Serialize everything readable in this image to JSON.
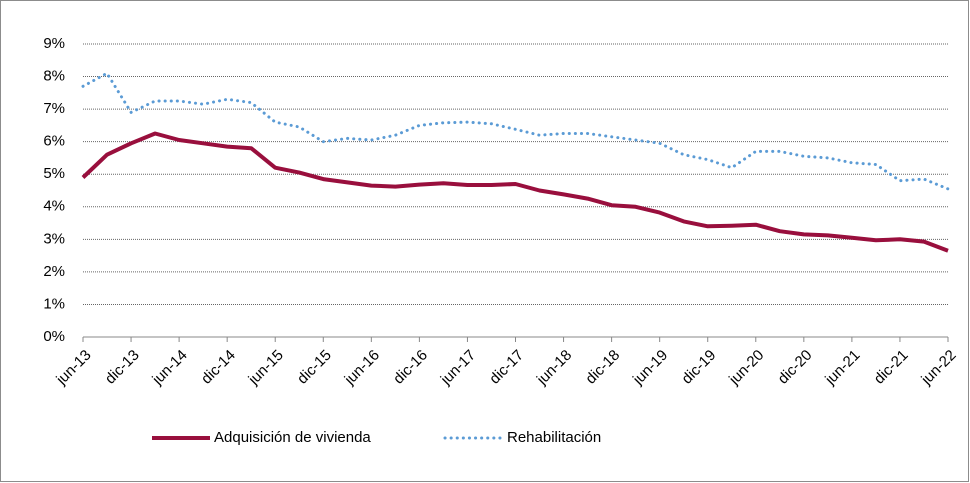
{
  "chart_data": {
    "type": "line",
    "categories": [
      "jun-13",
      null,
      "dic-13",
      null,
      "jun-14",
      null,
      "dic-14",
      null,
      "jun-15",
      null,
      "dic-15",
      null,
      "jun-16",
      null,
      "dic-16",
      null,
      "jun-17",
      null,
      "dic-17",
      null,
      "jun-18",
      null,
      "dic-18",
      null,
      "jun-19",
      null,
      "dic-19",
      null,
      "jun-20",
      null,
      "dic-20",
      null,
      "jun-21",
      null,
      "dic-21",
      null,
      "jun-22"
    ],
    "series": [
      {
        "name": "Adquisición de vivienda",
        "color": "#990f3d",
        "style": "solid",
        "values": [
          4.9,
          5.6,
          5.95,
          6.25,
          6.05,
          5.95,
          5.85,
          5.8,
          5.2,
          5.05,
          4.85,
          4.75,
          4.65,
          4.62,
          4.68,
          4.72,
          4.67,
          4.67,
          4.7,
          4.5,
          4.38,
          4.25,
          4.05,
          4.0,
          3.82,
          3.55,
          3.4,
          3.42,
          3.45,
          3.25,
          3.15,
          3.12,
          3.05,
          2.97,
          3.0,
          2.93,
          2.65
        ]
      },
      {
        "name": "Rehabilitación",
        "color": "#5b9bd5",
        "style": "dotted",
        "values": [
          7.7,
          8.1,
          6.9,
          7.25,
          7.25,
          7.15,
          7.3,
          7.2,
          6.6,
          6.45,
          6.0,
          6.1,
          6.05,
          6.2,
          6.5,
          6.58,
          6.6,
          6.55,
          6.38,
          6.2,
          6.25,
          6.25,
          6.15,
          6.05,
          5.95,
          5.6,
          5.45,
          5.2,
          5.7,
          5.7,
          5.55,
          5.5,
          5.35,
          5.3,
          4.8,
          4.85,
          4.55
        ]
      }
    ],
    "ylim": [
      0,
      9
    ],
    "yticks": [
      {
        "value": 0,
        "label": "0%"
      },
      {
        "value": 1,
        "label": "1%"
      },
      {
        "value": 2,
        "label": "2%"
      },
      {
        "value": 3,
        "label": "3%"
      },
      {
        "value": 4,
        "label": "4%"
      },
      {
        "value": 5,
        "label": "5%"
      },
      {
        "value": 6,
        "label": "6%"
      },
      {
        "value": 7,
        "label": "7%"
      },
      {
        "value": 8,
        "label": "8%"
      },
      {
        "value": 9,
        "label": "9%"
      }
    ],
    "grid": true,
    "legend": "bottom"
  }
}
